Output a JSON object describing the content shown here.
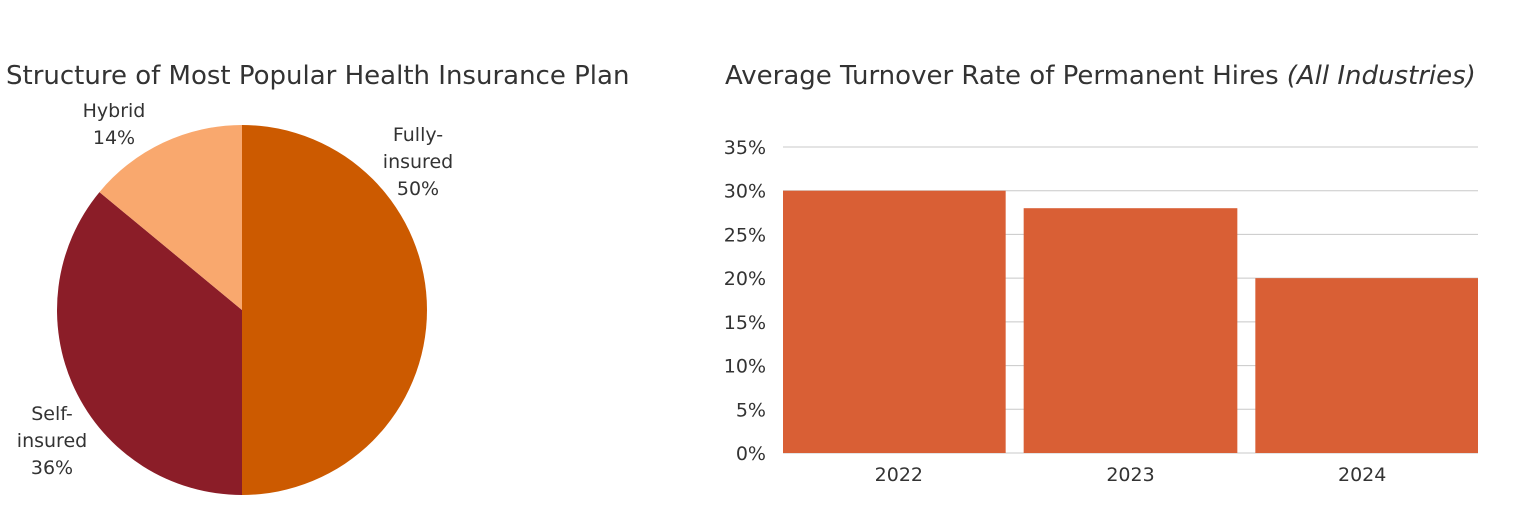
{
  "chart_data": [
    {
      "type": "pie",
      "title": "Structure  of Most Popular Health Insurance Plan",
      "slices": [
        {
          "label_lines": [
            "Fully-",
            "insured"
          ],
          "label": "Fully-insured",
          "value": 50,
          "value_label": "50%",
          "color": "#CC5A00"
        },
        {
          "label_lines": [
            "Self-",
            "insured"
          ],
          "label": "Self-insured",
          "value": 36,
          "value_label": "36%",
          "color": "#8B1D28"
        },
        {
          "label_lines": [
            "Hybrid"
          ],
          "label": "Hybrid",
          "value": 14,
          "value_label": "14%",
          "color": "#F9A86E"
        }
      ]
    },
    {
      "type": "bar",
      "title": "Average Turnover Rate of Permanent Hires",
      "title_italic": "(All Industries)",
      "categories": [
        "2022",
        "2023",
        "2024"
      ],
      "values": [
        30,
        28,
        20
      ],
      "ylim": [
        0,
        35
      ],
      "yticks": [
        "0%",
        "5%",
        "10%",
        "15%",
        "20%",
        "25%",
        "30%",
        "35%"
      ],
      "ytick_values": [
        0,
        5,
        10,
        15,
        20,
        25,
        30,
        35
      ],
      "bar_color": "#D95F35",
      "grid": true
    }
  ]
}
